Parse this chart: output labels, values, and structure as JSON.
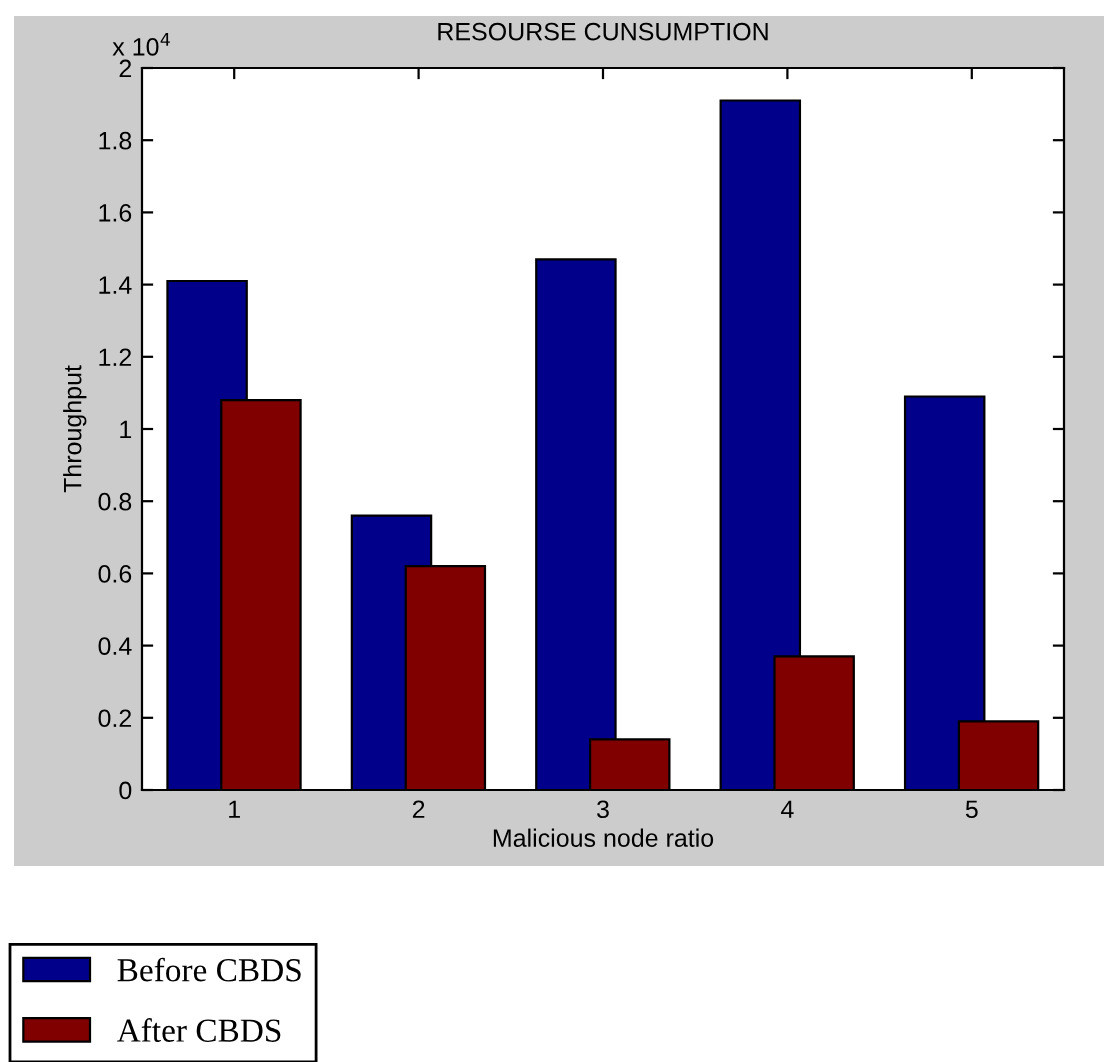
{
  "chart_data": {
    "type": "bar",
    "title": "RESOURSE CUNSUMPTION",
    "xlabel": "Malicious node ratio",
    "ylabel": "Throughput",
    "categories": [
      "1",
      "2",
      "3",
      "4",
      "5"
    ],
    "series": [
      {
        "name": "Before CBDS",
        "color": "#00008b",
        "values": [
          1.41,
          0.76,
          1.47,
          1.91,
          1.09
        ]
      },
      {
        "name": "After CBDS",
        "color": "#800000",
        "values": [
          1.08,
          0.62,
          0.14,
          0.37,
          0.19
        ]
      }
    ],
    "ylim": [
      0,
      2
    ],
    "yticks": [
      0,
      0.2,
      0.4,
      0.6,
      0.8,
      1,
      1.2,
      1.4,
      1.6,
      1.8,
      2
    ],
    "annotations": [
      "x 10$^{4}$"
    ],
    "grid": false,
    "legend": "bottom left"
  }
}
